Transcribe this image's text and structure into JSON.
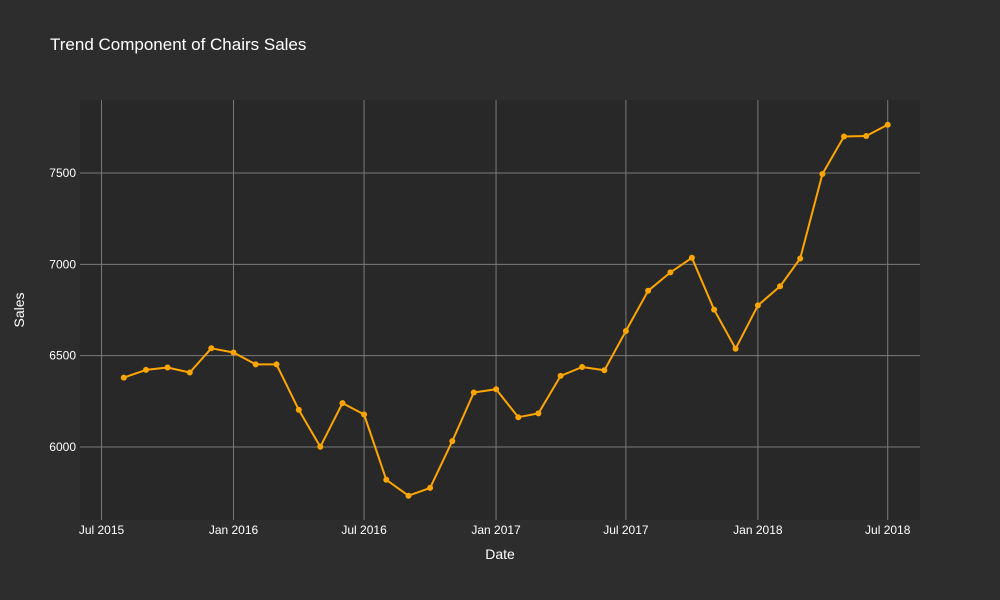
{
  "chart_data": {
    "type": "line",
    "title": "Trend Component of Chairs Sales",
    "xlabel": "Date",
    "ylabel": "Sales",
    "x_tick_labels": [
      "Jul 2015",
      "Jan 2016",
      "Jul 2016",
      "Jan 2017",
      "Jul 2017",
      "Jan 2018",
      "Jul 2018"
    ],
    "y_tick_labels": [
      "6000",
      "6500",
      "7000",
      "7500"
    ],
    "xlim": [
      "2015-06-01",
      "2018-08-15"
    ],
    "ylim": [
      5600,
      7900
    ],
    "grid": true,
    "series": [
      {
        "color": "#ffa500",
        "points": [
          {
            "x": "2015-08-01",
            "y": 6380
          },
          {
            "x": "2015-09-01",
            "y": 6422
          },
          {
            "x": "2015-10-01",
            "y": 6435
          },
          {
            "x": "2015-11-01",
            "y": 6408
          },
          {
            "x": "2015-12-01",
            "y": 6540
          },
          {
            "x": "2016-01-01",
            "y": 6517
          },
          {
            "x": "2016-02-01",
            "y": 6452
          },
          {
            "x": "2016-03-01",
            "y": 6452
          },
          {
            "x": "2016-04-01",
            "y": 6203
          },
          {
            "x": "2016-05-01",
            "y": 6001
          },
          {
            "x": "2016-06-01",
            "y": 6240
          },
          {
            "x": "2016-07-01",
            "y": 6178
          },
          {
            "x": "2016-08-01",
            "y": 5820
          },
          {
            "x": "2016-09-01",
            "y": 5733
          },
          {
            "x": "2016-10-01",
            "y": 5776
          },
          {
            "x": "2016-11-01",
            "y": 6032
          },
          {
            "x": "2016-12-01",
            "y": 6298
          },
          {
            "x": "2017-01-01",
            "y": 6316
          },
          {
            "x": "2017-02-01",
            "y": 6163
          },
          {
            "x": "2017-03-01",
            "y": 6184
          },
          {
            "x": "2017-04-01",
            "y": 6389
          },
          {
            "x": "2017-05-01",
            "y": 6438
          },
          {
            "x": "2017-06-01",
            "y": 6420
          },
          {
            "x": "2017-07-01",
            "y": 6635
          },
          {
            "x": "2017-08-01",
            "y": 6855
          },
          {
            "x": "2017-09-01",
            "y": 6956
          },
          {
            "x": "2017-10-01",
            "y": 7036
          },
          {
            "x": "2017-11-01",
            "y": 6752
          },
          {
            "x": "2017-12-01",
            "y": 6538
          },
          {
            "x": "2018-01-01",
            "y": 6775
          },
          {
            "x": "2018-02-01",
            "y": 6880
          },
          {
            "x": "2018-03-01",
            "y": 7032
          },
          {
            "x": "2018-04-01",
            "y": 7495
          },
          {
            "x": "2018-05-01",
            "y": 7700
          },
          {
            "x": "2018-06-01",
            "y": 7703
          },
          {
            "x": "2018-07-01",
            "y": 7765
          }
        ]
      }
    ]
  }
}
